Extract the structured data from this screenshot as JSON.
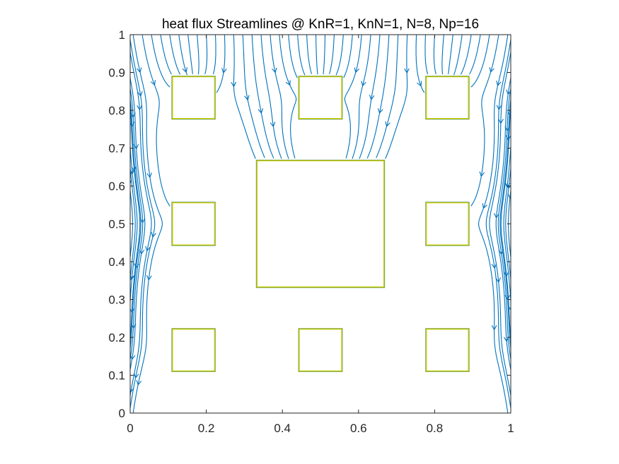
{
  "chart_data": {
    "type": "streamline",
    "title": "heat flux Streamlines @ KnR=1, KnN=1, N=8, Np=16",
    "xlabel": "",
    "ylabel": "",
    "xlim": [
      0,
      1
    ],
    "ylim": [
      0,
      1
    ],
    "xticks": [
      0,
      0.2,
      0.4,
      0.6,
      0.8,
      1
    ],
    "xtick_labels": [
      "0",
      "0.2",
      "0.4",
      "0.6",
      "0.8",
      "1"
    ],
    "yticks": [
      0,
      0.1,
      0.2,
      0.3,
      0.4,
      0.5,
      0.6,
      0.7,
      0.8,
      0.9,
      1
    ],
    "ytick_labels": [
      "0",
      "0.1",
      "0.2",
      "0.3",
      "0.4",
      "0.5",
      "0.6",
      "0.7",
      "0.8",
      "0.9",
      "1"
    ],
    "grid": false,
    "flow_direction": "top-to-bottom",
    "line_color": "#0072BD",
    "obstacle_edge_color": "#c8c800",
    "obstacles": [
      {
        "x0": 0.111,
        "x1": 0.222,
        "y0": 0.778,
        "y1": 0.889
      },
      {
        "x0": 0.444,
        "x1": 0.556,
        "y0": 0.778,
        "y1": 0.889
      },
      {
        "x0": 0.778,
        "x1": 0.889,
        "y0": 0.778,
        "y1": 0.889
      },
      {
        "x0": 0.111,
        "x1": 0.222,
        "y0": 0.444,
        "y1": 0.556
      },
      {
        "x0": 0.333,
        "x1": 0.667,
        "y0": 0.333,
        "y1": 0.667
      },
      {
        "x0": 0.778,
        "x1": 0.889,
        "y0": 0.444,
        "y1": 0.556
      },
      {
        "x0": 0.111,
        "x1": 0.222,
        "y0": 0.111,
        "y1": 0.222
      },
      {
        "x0": 0.444,
        "x1": 0.556,
        "y0": 0.111,
        "y1": 0.222
      },
      {
        "x0": 0.778,
        "x1": 0.889,
        "y0": 0.111,
        "y1": 0.222
      }
    ]
  }
}
